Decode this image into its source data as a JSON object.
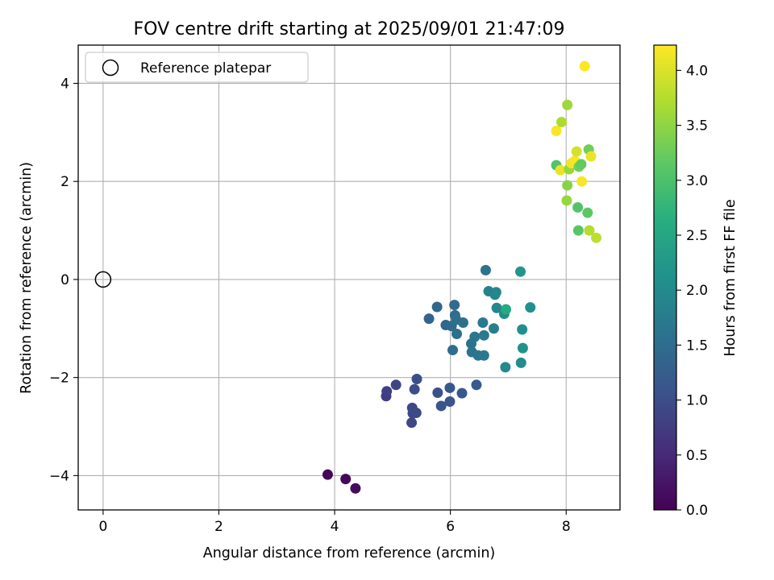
{
  "chart_data": {
    "type": "scatter",
    "title": "FOV centre drift starting at 2025/09/01 21:47:09",
    "xlabel": "Angular distance from reference (arcmin)",
    "ylabel": "Rotation from reference (arcmin)",
    "xlim": [
      -0.43,
      8.93
    ],
    "ylim": [
      -4.7,
      4.78
    ],
    "xticks": [
      0,
      2,
      4,
      6,
      8
    ],
    "xtick_labels": [
      "0",
      "2",
      "4",
      "6",
      "8"
    ],
    "yticks": [
      -4,
      -2,
      0,
      2,
      4
    ],
    "ytick_labels": [
      "−4",
      "−2",
      "0",
      "2",
      "4"
    ],
    "grid": true,
    "legend": {
      "position": "top-left",
      "entries": [
        "Reference platepar"
      ]
    },
    "reference_point": {
      "x": 0,
      "y": 0,
      "label": "Reference platepar"
    },
    "colorbar": {
      "label": "Hours from first FF file",
      "range": [
        0,
        4.23
      ],
      "ticks": [
        0.0,
        0.5,
        1.0,
        1.5,
        2.0,
        2.5,
        3.0,
        3.5,
        4.0
      ],
      "tick_labels": [
        "0.0",
        "0.5",
        "1.0",
        "1.5",
        "2.0",
        "2.5",
        "3.0",
        "3.5",
        "4.0"
      ],
      "colormap": "viridis"
    },
    "points": [
      {
        "x": 3.88,
        "y": -3.98,
        "c": 0.05
      },
      {
        "x": 4.19,
        "y": -4.07,
        "c": 0.1
      },
      {
        "x": 4.36,
        "y": -4.26,
        "c": 0.15
      },
      {
        "x": 4.89,
        "y": -2.38,
        "c": 0.75
      },
      {
        "x": 4.9,
        "y": -2.28,
        "c": 0.8
      },
      {
        "x": 5.06,
        "y": -2.15,
        "c": 0.85
      },
      {
        "x": 5.33,
        "y": -2.92,
        "c": 0.9
      },
      {
        "x": 5.34,
        "y": -2.62,
        "c": 0.9
      },
      {
        "x": 5.35,
        "y": -2.73,
        "c": 0.95
      },
      {
        "x": 5.38,
        "y": -2.24,
        "c": 1.0
      },
      {
        "x": 5.41,
        "y": -2.72,
        "c": 0.95
      },
      {
        "x": 5.42,
        "y": -2.03,
        "c": 1.0
      },
      {
        "x": 5.78,
        "y": -2.31,
        "c": 1.05
      },
      {
        "x": 5.84,
        "y": -2.58,
        "c": 1.1
      },
      {
        "x": 5.99,
        "y": -2.49,
        "c": 1.1
      },
      {
        "x": 5.99,
        "y": -2.21,
        "c": 1.15
      },
      {
        "x": 6.2,
        "y": -2.32,
        "c": 1.15
      },
      {
        "x": 6.45,
        "y": -2.15,
        "c": 1.2
      },
      {
        "x": 5.63,
        "y": -0.8,
        "c": 1.35
      },
      {
        "x": 5.77,
        "y": -0.56,
        "c": 1.4
      },
      {
        "x": 5.92,
        "y": -0.93,
        "c": 1.4
      },
      {
        "x": 6.02,
        "y": -0.95,
        "c": 1.45
      },
      {
        "x": 6.04,
        "y": -1.44,
        "c": 1.5
      },
      {
        "x": 6.07,
        "y": -0.52,
        "c": 1.45
      },
      {
        "x": 6.08,
        "y": -0.73,
        "c": 1.5
      },
      {
        "x": 6.1,
        "y": -0.82,
        "c": 1.55
      },
      {
        "x": 6.11,
        "y": -1.11,
        "c": 1.55
      },
      {
        "x": 6.22,
        "y": -0.88,
        "c": 1.55
      },
      {
        "x": 6.36,
        "y": -1.31,
        "c": 1.6
      },
      {
        "x": 6.37,
        "y": -1.48,
        "c": 1.6
      },
      {
        "x": 6.42,
        "y": -1.17,
        "c": 1.65
      },
      {
        "x": 6.48,
        "y": -1.55,
        "c": 1.65
      },
      {
        "x": 6.56,
        "y": -0.88,
        "c": 1.7
      },
      {
        "x": 6.58,
        "y": -1.14,
        "c": 1.7
      },
      {
        "x": 6.58,
        "y": -1.55,
        "c": 1.7
      },
      {
        "x": 6.61,
        "y": 0.19,
        "c": 1.6
      },
      {
        "x": 6.66,
        "y": -0.24,
        "c": 1.85
      },
      {
        "x": 6.75,
        "y": -1.0,
        "c": 1.8
      },
      {
        "x": 6.77,
        "y": -0.31,
        "c": 1.9
      },
      {
        "x": 6.79,
        "y": -0.26,
        "c": 1.95
      },
      {
        "x": 6.8,
        "y": -0.58,
        "c": 1.95
      },
      {
        "x": 6.93,
        "y": -0.7,
        "c": 2.05
      },
      {
        "x": 6.95,
        "y": -1.79,
        "c": 2.0
      },
      {
        "x": 6.96,
        "y": -0.61,
        "c": 2.55
      },
      {
        "x": 7.21,
        "y": 0.16,
        "c": 2.2
      },
      {
        "x": 7.22,
        "y": -1.7,
        "c": 2.05
      },
      {
        "x": 7.24,
        "y": -1.02,
        "c": 2.1
      },
      {
        "x": 7.25,
        "y": -1.4,
        "c": 2.15
      },
      {
        "x": 7.38,
        "y": -0.57,
        "c": 2.1
      },
      {
        "x": 7.83,
        "y": 3.03,
        "c": 4.2
      },
      {
        "x": 7.83,
        "y": 2.33,
        "c": 3.05
      },
      {
        "x": 7.9,
        "y": 2.23,
        "c": 4.1
      },
      {
        "x": 7.92,
        "y": 3.21,
        "c": 3.7
      },
      {
        "x": 8.01,
        "y": 1.61,
        "c": 3.55
      },
      {
        "x": 8.02,
        "y": 3.56,
        "c": 3.6
      },
      {
        "x": 8.02,
        "y": 1.92,
        "c": 3.45
      },
      {
        "x": 8.05,
        "y": 2.25,
        "c": 3.55
      },
      {
        "x": 8.09,
        "y": 2.37,
        "c": 4.15
      },
      {
        "x": 8.15,
        "y": 2.42,
        "c": 4.2
      },
      {
        "x": 8.18,
        "y": 2.61,
        "c": 3.95
      },
      {
        "x": 8.2,
        "y": 1.47,
        "c": 3.05
      },
      {
        "x": 8.21,
        "y": 1.0,
        "c": 3.1
      },
      {
        "x": 8.22,
        "y": 2.3,
        "c": 3.3
      },
      {
        "x": 8.26,
        "y": 2.35,
        "c": 3.2
      },
      {
        "x": 8.27,
        "y": 2.0,
        "c": 4.2
      },
      {
        "x": 8.32,
        "y": 4.35,
        "c": 4.23
      },
      {
        "x": 8.37,
        "y": 1.36,
        "c": 3.15
      },
      {
        "x": 8.39,
        "y": 2.65,
        "c": 3.3
      },
      {
        "x": 8.4,
        "y": 1.0,
        "c": 3.75
      },
      {
        "x": 8.43,
        "y": 2.51,
        "c": 4.1
      },
      {
        "x": 8.52,
        "y": 0.85,
        "c": 3.8
      }
    ]
  }
}
